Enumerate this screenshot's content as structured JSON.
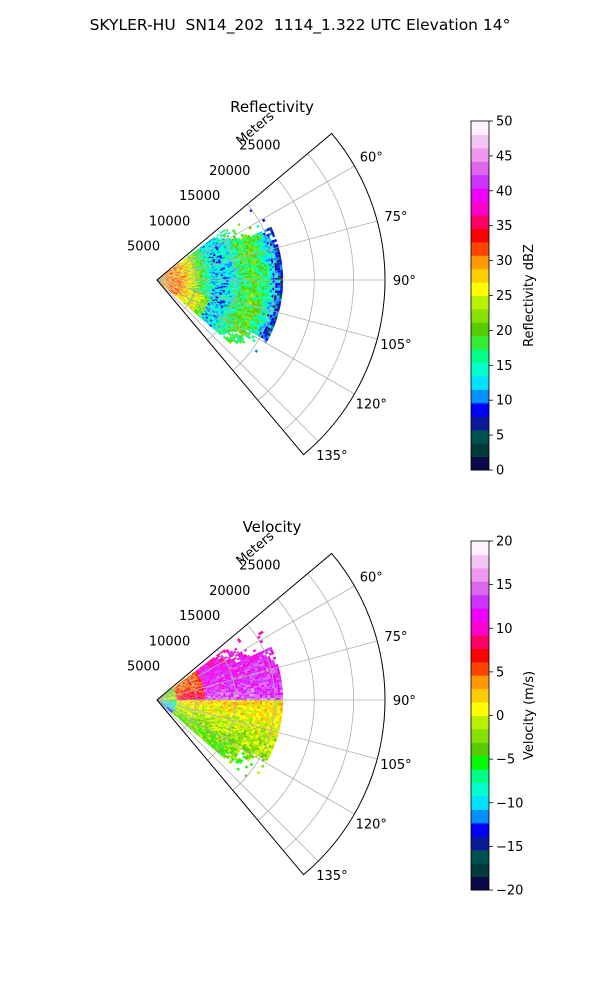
{
  "figure": {
    "title": "SKYLER-HU  SN14_202  1114_1.322 UTC Elevation 14°"
  },
  "chart_data": [
    {
      "type": "heatmap",
      "subtype": "polar-sector (radar PPI)",
      "title": "Reflectivity",
      "range_label": "Meters",
      "range_ticks": [
        5000,
        10000,
        15000,
        20000,
        25000
      ],
      "range_tick_labels": [
        "5000",
        "10000",
        "15000",
        "20000",
        "25000"
      ],
      "rmax": 29000,
      "azimuth_range_deg": [
        50,
        140
      ],
      "azimuth_ticks": [
        60,
        75,
        90,
        105,
        120,
        135
      ],
      "azimuth_tick_labels": [
        "60°",
        "75°",
        "90°",
        "105°",
        "120°",
        "135°"
      ],
      "grid": true,
      "echo_extent_m": [
        0,
        16000
      ],
      "colorbar": {
        "label": "Reflectivity dBZ",
        "min": 0,
        "max": 50,
        "ticks": [
          0,
          5,
          10,
          15,
          20,
          25,
          30,
          35,
          40,
          45,
          50
        ],
        "tick_labels": [
          "0",
          "5",
          "10",
          "15",
          "20",
          "25",
          "30",
          "35",
          "40",
          "45",
          "50"
        ],
        "colors": [
          "#0a0a4a",
          "#003a3a",
          "#005050",
          "#0a1a9a",
          "#0000ff",
          "#0090ff",
          "#00e0ff",
          "#00ffcc",
          "#00ff88",
          "#33ee33",
          "#55cc00",
          "#88e000",
          "#bbf000",
          "#ffff00",
          "#ffcc00",
          "#ff9900",
          "#ff4400",
          "#ff0000",
          "#ff0066",
          "#ff00cc",
          "#ee00ff",
          "#cc33ff",
          "#dd66ee",
          "#ee99ee",
          "#f4c4f4",
          "#fff0ff"
        ]
      }
    },
    {
      "type": "heatmap",
      "subtype": "polar-sector (radar PPI)",
      "title": "Velocity",
      "range_label": "Meters",
      "range_ticks": [
        5000,
        10000,
        15000,
        20000,
        25000
      ],
      "range_tick_labels": [
        "5000",
        "10000",
        "15000",
        "20000",
        "25000"
      ],
      "rmax": 29000,
      "azimuth_range_deg": [
        50,
        140
      ],
      "azimuth_ticks": [
        60,
        75,
        90,
        105,
        120,
        135
      ],
      "azimuth_tick_labels": [
        "60°",
        "75°",
        "90°",
        "105°",
        "120°",
        "135°"
      ],
      "grid": true,
      "echo_extent_m": [
        0,
        16000
      ],
      "colorbar": {
        "label": "Velocity (m/s)",
        "min": -20,
        "max": 20,
        "ticks": [
          -20,
          -15,
          -10,
          -5,
          0,
          5,
          10,
          15,
          20
        ],
        "tick_labels": [
          "−20",
          "−15",
          "−10",
          "−5",
          "0",
          "5",
          "10",
          "15",
          "20"
        ],
        "colors": [
          "#0a0a4a",
          "#003a3a",
          "#005050",
          "#0a1a9a",
          "#0000ff",
          "#0090ff",
          "#00e0ff",
          "#00ffcc",
          "#00ff88",
          "#00ff00",
          "#55cc00",
          "#88e000",
          "#bbf000",
          "#ffff00",
          "#ffcc00",
          "#ff9900",
          "#ff4400",
          "#ff0000",
          "#ff0066",
          "#ff00cc",
          "#ee00ff",
          "#cc33ff",
          "#dd66ee",
          "#ee99ee",
          "#f4c4f4",
          "#fff0ff"
        ]
      }
    }
  ]
}
